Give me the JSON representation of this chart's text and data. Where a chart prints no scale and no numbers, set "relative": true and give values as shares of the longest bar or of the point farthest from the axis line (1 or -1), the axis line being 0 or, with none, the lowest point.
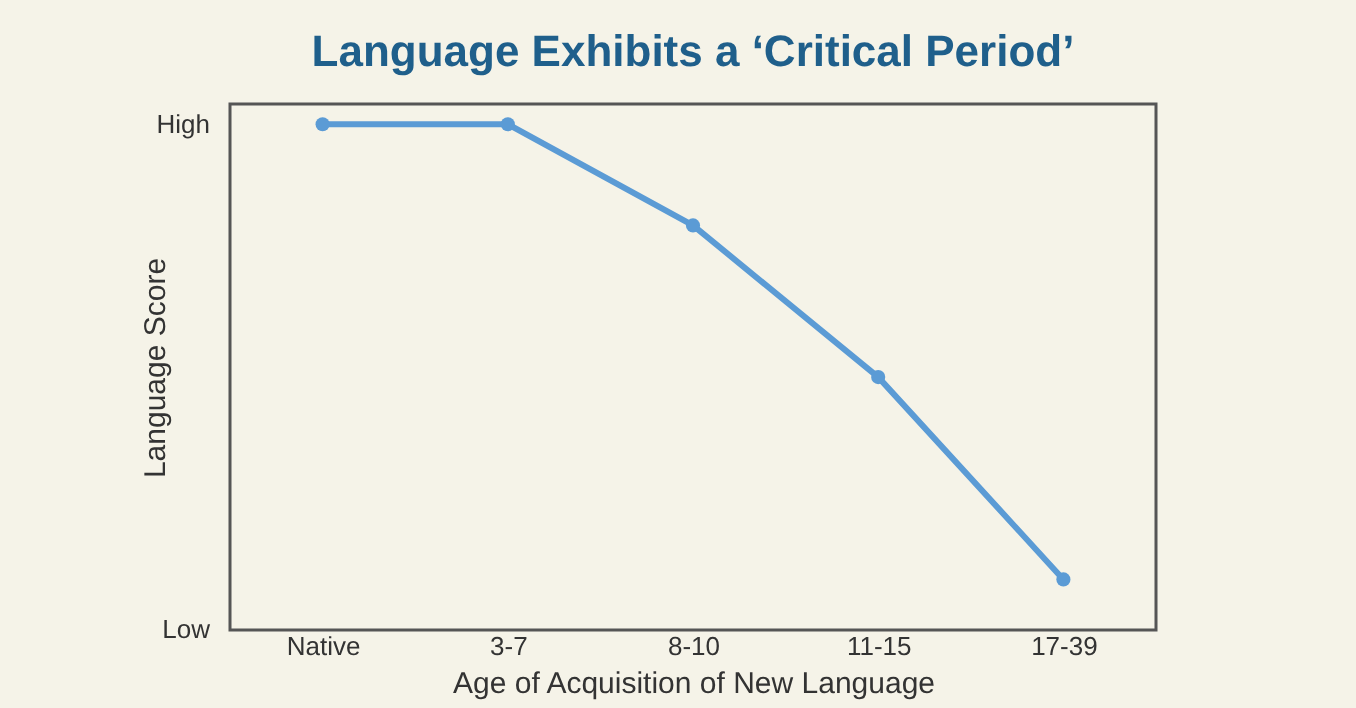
{
  "chart_data": {
    "type": "line",
    "title": "Language Exhibits a ‘Critical Period’",
    "xlabel": "Age of Acquisition of New Language",
    "ylabel": "Language Score",
    "categories": [
      "Native",
      "3-7",
      "8-10",
      "11-15",
      "17-39"
    ],
    "series": [
      {
        "color": "#5b9bd5",
        "values": [
          1,
          1,
          0.8,
          0.5,
          0.1
        ]
      }
    ],
    "relative": true,
    "annotations": [
      "High",
      "Low"
    ],
    "marker": "circle",
    "line_style": "solid"
  }
}
